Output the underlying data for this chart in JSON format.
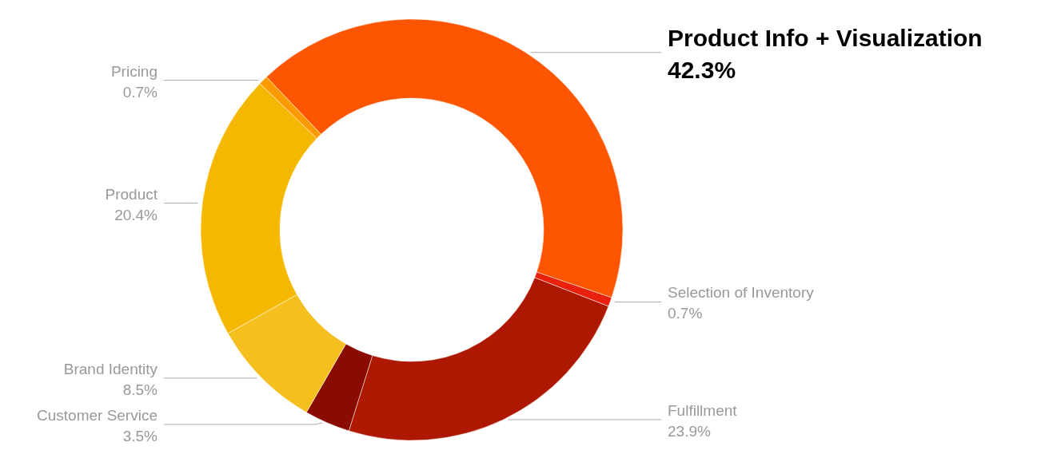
{
  "chart_data": {
    "type": "donut",
    "categories": [
      "Product Info + Visualization",
      "Selection of Inventory",
      "Fulfillment",
      "Customer Service",
      "Brand Identity",
      "Product",
      "Pricing"
    ],
    "values": [
      42.3,
      0.7,
      23.9,
      3.5,
      8.5,
      20.4,
      0.7
    ],
    "value_labels": [
      "42.3%",
      "0.7%",
      "23.9%",
      "3.5%",
      "8.5%",
      "20.4%",
      "0.7%"
    ],
    "colors": [
      "#fe5500",
      "#e8200c",
      "#ae1800",
      "#8a0c00",
      "#f5bf20",
      "#f5b800",
      "#fa9a00"
    ]
  }
}
